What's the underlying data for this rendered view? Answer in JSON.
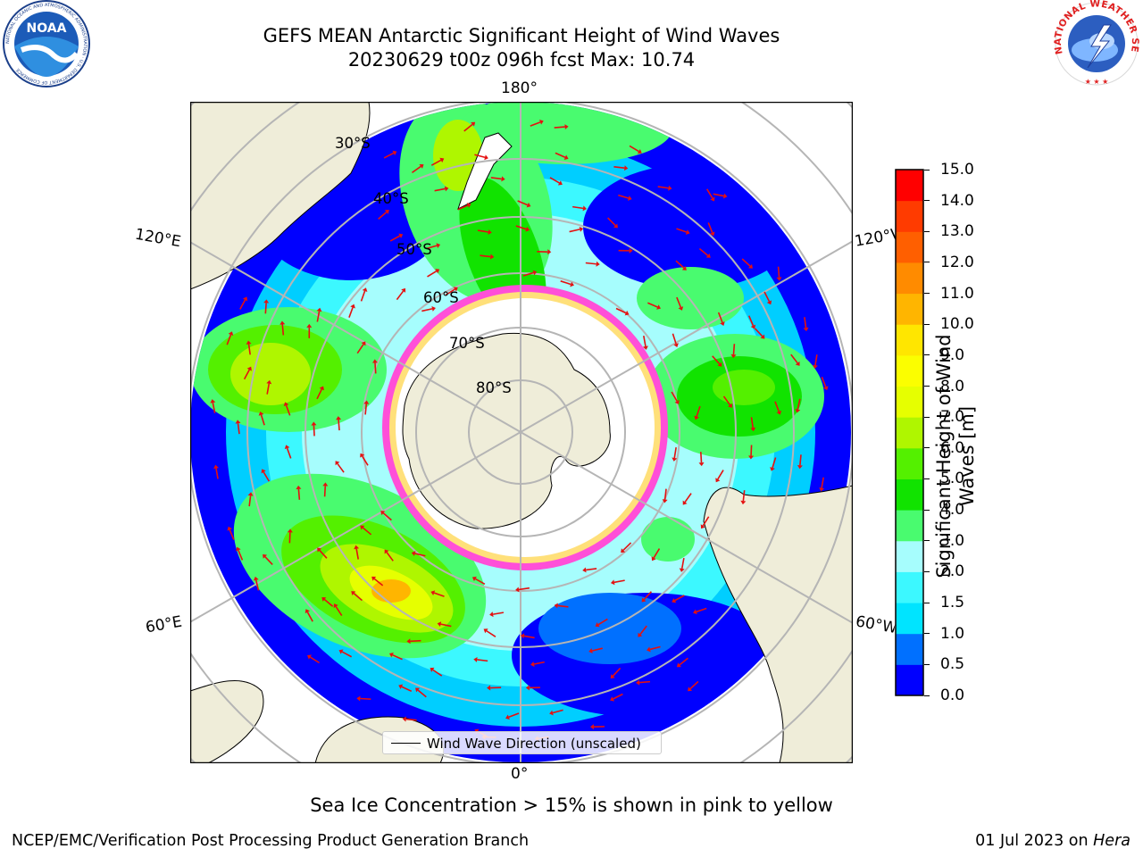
{
  "header": {
    "title_line1": "GEFS MEAN Antarctic Significant Height of Wind Waves",
    "title_line2": "20230629 t00z 096h fcst   Max: 10.74"
  },
  "logos": {
    "left": {
      "name": "noaa-logo",
      "text": "NOAA",
      "ring_text": "NATIONAL OCEANIC AND ATMOSPHERIC ADMINISTRATION · U.S. DEPARTMENT OF COMMERCE"
    },
    "right": {
      "name": "nws-logo",
      "ring_text": "NATIONAL WEATHER SERVICE"
    }
  },
  "map": {
    "projection": "south-polar-stereographic",
    "lon_labels": {
      "top": "180°",
      "bottom": "0°",
      "left_upper": "120°E",
      "left_lower": "60°E",
      "right_upper": "120°W",
      "right_lower": "60°W"
    },
    "lat_labels": [
      "30°S",
      "40°S",
      "50°S",
      "60°S",
      "70°S",
      "80°S"
    ],
    "legend_label": "Wind Wave Direction (unscaled)",
    "colors": {
      "land": "#efedd9",
      "ice_edge_pink": "#ff4fd8",
      "ice_edge_yellow": "#ffe07a",
      "arrow": "#e41010",
      "grid": "#b5b5b5"
    }
  },
  "colorbar": {
    "label_line1": "Significant Height of Wind",
    "label_line2": "Waves [m]",
    "ticks": [
      "0.0",
      "0.5",
      "1.0",
      "1.5",
      "2.0",
      "3.0",
      "4.0",
      "5.0",
      "6.0",
      "7.0",
      "8.0",
      "9.0",
      "10.0",
      "11.0",
      "12.0",
      "13.0",
      "14.0",
      "15.0"
    ],
    "colors": [
      "#0000ff",
      "#0070ff",
      "#00e4ff",
      "#3cf8ff",
      "#a6fdfd",
      "#49fb6f",
      "#11e300",
      "#54f000",
      "#aff600",
      "#e6ff00",
      "#fbfe00",
      "#ffe600",
      "#ffb500",
      "#ff8b00",
      "#ff5f00",
      "#ff3b00",
      "#ff0000"
    ]
  },
  "note": "Sea Ice Concentration > 15% is shown in pink to yellow",
  "footer": {
    "left": "NCEP/EMC/Verification Post Processing Product Generation Branch",
    "right_prefix": "01 Jul 2023 on ",
    "right_italic": "Hera"
  }
}
